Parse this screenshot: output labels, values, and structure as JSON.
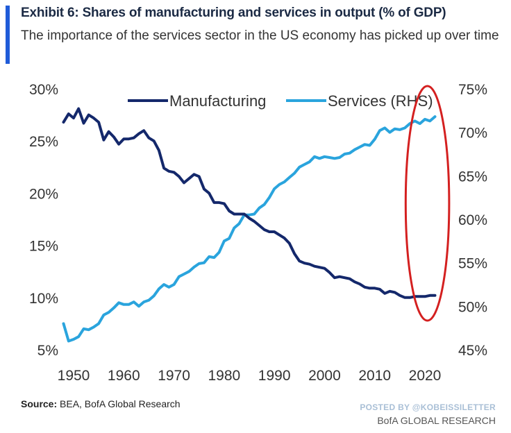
{
  "header": {
    "title": "Exhibit 6: Shares of manufacturing and services in output (% of GDP)",
    "subtitle": "The importance of the services sector in the US economy has picked up over time"
  },
  "footer": {
    "source_label": "Source:",
    "source_text": " BEA, BofA Global Research",
    "watermark": "POSTED BY @KOBEISSILETTER",
    "brand": "BofA GLOBAL RESEARCH"
  },
  "colors": {
    "manufacturing": "#14286b",
    "services": "#2aa4dd",
    "highlight": "#d42020",
    "axis_text": "#333333"
  },
  "chart_data": {
    "type": "line",
    "title": "Shares of manufacturing and services in output (% of GDP)",
    "x_ticks": [
      1950,
      1960,
      1970,
      1980,
      1990,
      2000,
      2010,
      2020
    ],
    "xlim": [
      1947,
      2024
    ],
    "left_axis": {
      "lim": [
        5,
        30
      ],
      "ticks": [
        "30%",
        "25%",
        "20%",
        "15%",
        "10%",
        "5%"
      ],
      "tick_values": [
        30,
        25,
        20,
        15,
        10,
        5
      ]
    },
    "right_axis": {
      "lim": [
        45,
        75
      ],
      "ticks": [
        "75%",
        "70%",
        "65%",
        "60%",
        "55%",
        "50%",
        "45%"
      ],
      "tick_values": [
        75,
        70,
        65,
        60,
        55,
        50,
        45
      ]
    },
    "legend": {
      "placement": "top",
      "entries": [
        "Manufacturing",
        "Services (RHS)"
      ]
    },
    "highlight": {
      "shape": "ellipse",
      "x_range": [
        2017,
        2024
      ]
    },
    "series": [
      {
        "name": "Manufacturing",
        "axis": "left",
        "x": [
          1948,
          1949,
          1950,
          1951,
          1952,
          1953,
          1954,
          1955,
          1956,
          1957,
          1958,
          1959,
          1960,
          1961,
          1962,
          1963,
          1964,
          1965,
          1966,
          1967,
          1968,
          1969,
          1970,
          1971,
          1972,
          1973,
          1974,
          1975,
          1976,
          1977,
          1978,
          1979,
          1980,
          1981,
          1982,
          1983,
          1984,
          1985,
          1986,
          1987,
          1988,
          1989,
          1990,
          1991,
          1992,
          1993,
          1994,
          1995,
          1996,
          1997,
          1998,
          1999,
          2000,
          2001,
          2002,
          2003,
          2004,
          2005,
          2006,
          2007,
          2008,
          2009,
          2010,
          2011,
          2012,
          2013,
          2014,
          2015,
          2016,
          2017,
          2018,
          2019,
          2020,
          2021,
          2022
        ],
        "values": [
          26.8,
          27.6,
          27.2,
          28.1,
          26.7,
          27.5,
          27.2,
          26.8,
          25.1,
          25.9,
          25.4,
          24.7,
          25.2,
          25.2,
          25.3,
          25.7,
          26.0,
          25.3,
          25.0,
          24.1,
          22.4,
          22.1,
          22.0,
          21.6,
          21.0,
          21.4,
          21.8,
          21.6,
          20.4,
          20.0,
          19.1,
          19.1,
          19.0,
          18.3,
          18.0,
          18.0,
          18.0,
          17.6,
          17.3,
          16.9,
          16.5,
          16.3,
          16.3,
          16.0,
          15.7,
          15.2,
          14.2,
          13.5,
          13.3,
          13.2,
          13.0,
          12.9,
          12.8,
          12.4,
          11.9,
          12.0,
          11.9,
          11.8,
          11.5,
          11.3,
          11.0,
          10.9,
          10.9,
          10.8,
          10.4,
          10.6,
          10.5,
          10.2,
          10.0,
          10.0,
          10.1,
          10.1,
          10.1,
          10.2,
          10.2
        ]
      },
      {
        "name": "Services (RHS)",
        "axis": "right",
        "x": [
          1948,
          1949,
          1950,
          1951,
          1952,
          1953,
          1954,
          1955,
          1956,
          1957,
          1958,
          1959,
          1960,
          1961,
          1962,
          1963,
          1964,
          1965,
          1966,
          1967,
          1968,
          1969,
          1970,
          1971,
          1972,
          1973,
          1974,
          1975,
          1976,
          1977,
          1978,
          1979,
          1980,
          1981,
          1982,
          1983,
          1984,
          1985,
          1986,
          1987,
          1988,
          1989,
          1990,
          1991,
          1992,
          1993,
          1994,
          1995,
          1996,
          1997,
          1998,
          1999,
          2000,
          2001,
          2002,
          2003,
          2004,
          2005,
          2006,
          2007,
          2008,
          2009,
          2010,
          2011,
          2012,
          2013,
          2014,
          2015,
          2016,
          2017,
          2018,
          2019,
          2020,
          2021,
          2022
        ],
        "values": [
          48.0,
          46.0,
          46.2,
          46.5,
          47.4,
          47.3,
          47.6,
          48.0,
          49.0,
          49.3,
          49.8,
          50.4,
          50.2,
          50.2,
          50.5,
          50.0,
          50.5,
          50.7,
          51.2,
          52.0,
          52.5,
          52.2,
          52.5,
          53.4,
          53.7,
          54.0,
          54.5,
          54.9,
          55.0,
          55.7,
          55.6,
          56.2,
          57.5,
          57.8,
          59.0,
          59.5,
          60.5,
          60.5,
          60.6,
          61.3,
          61.7,
          62.5,
          63.5,
          64.0,
          64.3,
          64.8,
          65.3,
          66.0,
          66.3,
          66.6,
          67.2,
          67.0,
          67.2,
          67.1,
          67.0,
          67.1,
          67.5,
          67.6,
          68.0,
          68.3,
          68.6,
          68.5,
          69.2,
          70.2,
          70.5,
          70.0,
          70.4,
          70.3,
          70.5,
          71.0,
          71.3,
          71.0,
          71.5,
          71.3,
          71.8
        ]
      }
    ]
  }
}
